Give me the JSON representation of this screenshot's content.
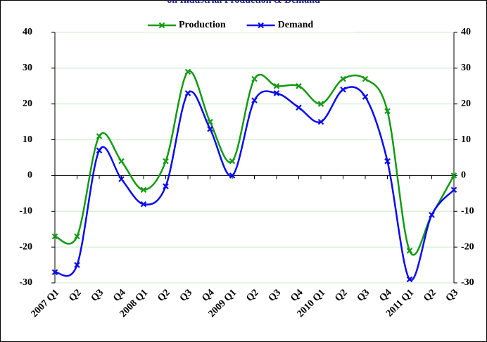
{
  "chart_data": {
    "type": "line",
    "title": "on Industrial Production & Demand",
    "categories": [
      "2007 Q1",
      "Q2",
      "Q3",
      "Q4",
      "2008 Q1",
      "Q2",
      "Q3",
      "Q4",
      "2009 Q1",
      "Q2",
      "Q3",
      "Q4",
      "2010 Q1",
      "Q2",
      "Q3",
      "Q4",
      "2011 Q1",
      "Q2",
      "Q3"
    ],
    "series": [
      {
        "name": "Production",
        "color": "#139a13",
        "values": [
          -17,
          -17,
          11,
          4,
          -4,
          4,
          29,
          15,
          4,
          27,
          25,
          25,
          20,
          27,
          27,
          18,
          -21,
          -11,
          0
        ]
      },
      {
        "name": "Demand",
        "color": "#0a0af0",
        "values": [
          -27,
          -25,
          7,
          -1,
          -8,
          -3,
          23,
          13,
          0,
          21,
          23,
          19,
          15,
          24,
          22,
          4,
          -29,
          -11,
          -4
        ]
      }
    ],
    "ylim": [
      -30,
      40
    ],
    "yticks": [
      -30,
      -20,
      -10,
      0,
      10,
      20,
      30,
      40
    ],
    "grid": true,
    "legend": "top"
  }
}
